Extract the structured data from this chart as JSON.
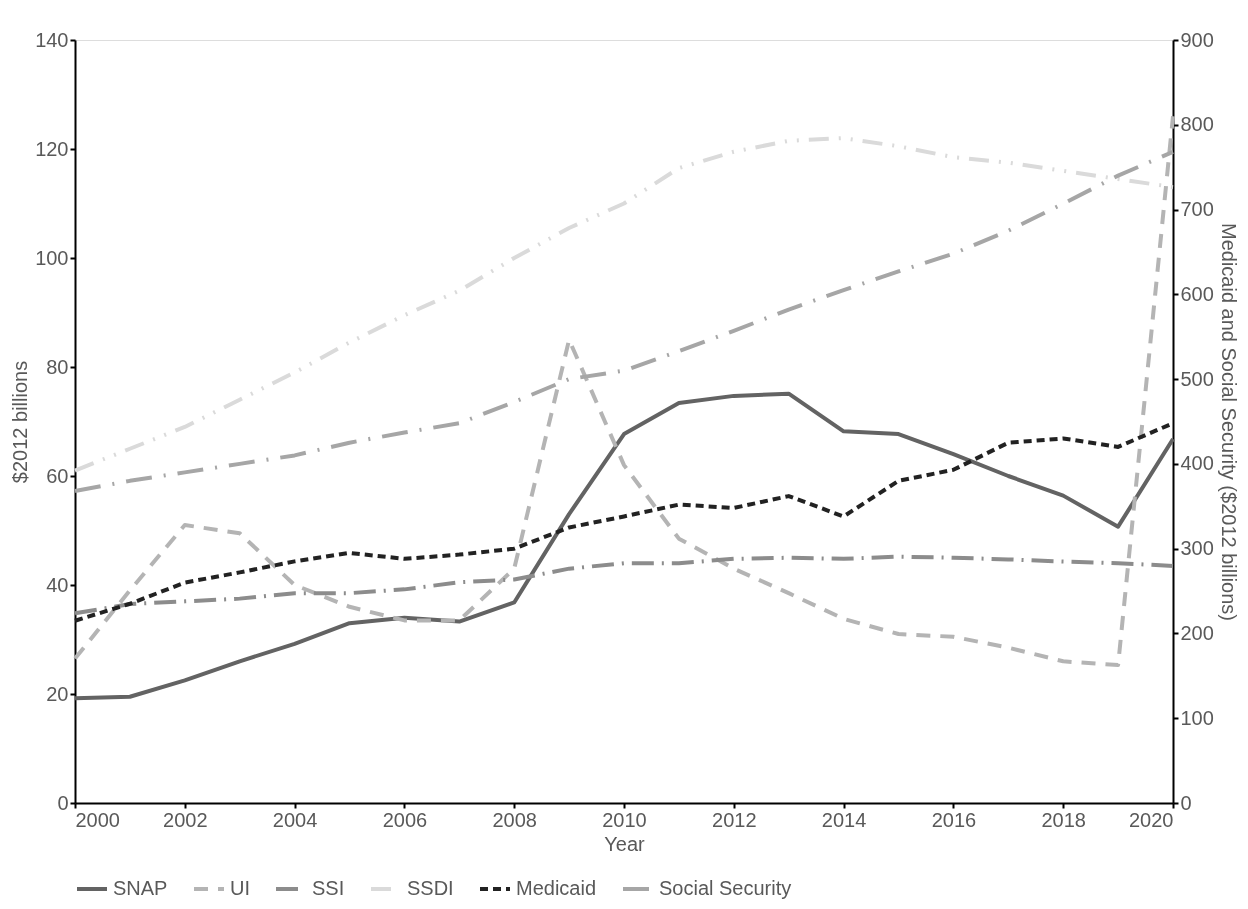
{
  "chart_data": {
    "type": "line",
    "xlabel": "Year",
    "ylabel": "$2012 billions",
    "y2label": "Medicaid and Social Security ($2012 billions)",
    "x": [
      2000,
      2001,
      2002,
      2003,
      2004,
      2005,
      2006,
      2007,
      2008,
      2009,
      2010,
      2011,
      2012,
      2013,
      2014,
      2015,
      2016,
      2017,
      2018,
      2019,
      2020
    ],
    "xlim": [
      2000,
      2020
    ],
    "xticks": [
      2000,
      2002,
      2004,
      2006,
      2008,
      2010,
      2012,
      2014,
      2016,
      2018,
      2020
    ],
    "ylim": [
      0,
      140
    ],
    "yticks": [
      0,
      20,
      40,
      60,
      80,
      100,
      120,
      140
    ],
    "y2lim": [
      0,
      900
    ],
    "y2ticks": [
      0,
      100,
      200,
      300,
      400,
      500,
      600,
      700,
      800,
      900
    ],
    "grid": false,
    "legend": "bottom",
    "marker": "none",
    "series": [
      {
        "name": "SNAP",
        "color": "#636363",
        "line_style": "solid",
        "values": [
          19.2,
          19.5,
          22.5,
          26,
          29.2,
          33,
          34,
          33.3,
          36.8,
          53,
          67.7,
          73.4,
          74.7,
          75.1,
          68.2,
          67.7,
          64,
          60,
          56.4,
          50.7,
          66.8
        ]
      },
      {
        "name": "UI",
        "color": "#b4b4b4",
        "line_style": "dashed",
        "values": [
          26.5,
          39,
          51,
          49.5,
          40,
          36,
          33.5,
          33.5,
          43,
          85,
          62,
          48.5,
          43,
          38.5,
          33.8,
          31,
          30.5,
          28.5,
          26,
          25.3,
          126
        ]
      },
      {
        "name": "SSI",
        "color": "#8c8c8c",
        "line_style": "dashed",
        "values": [
          34.8,
          36.5,
          37,
          37.5,
          38.5,
          38.5,
          39.2,
          40.5,
          41,
          43,
          44,
          44,
          44.8,
          45,
          44.8,
          45.2,
          45,
          44.7,
          44.3,
          44,
          43.5
        ]
      },
      {
        "name": "SSDI",
        "color": "#dadada",
        "line_style": "dashed",
        "values": [
          61,
          65,
          69,
          74,
          79,
          84.5,
          89.5,
          94,
          100,
          105.5,
          110,
          116.5,
          119.5,
          121.5,
          122,
          120.5,
          118.5,
          117.5,
          116,
          114.5,
          113
        ]
      },
      {
        "name": "Medicaid",
        "color": "#222222",
        "line_style": "dashed",
        "axis": "y2",
        "values": [
          215,
          235,
          260,
          272,
          285,
          295,
          288,
          293,
          300,
          325,
          338,
          352,
          348,
          362,
          338,
          380,
          393,
          425,
          430,
          420,
          448
        ]
      },
      {
        "name": "Social Security",
        "color": "#a6a6a6",
        "line_style": "dashed",
        "axis": "y2",
        "values": [
          368,
          380,
          390,
          400,
          410,
          425,
          437,
          448,
          473,
          500,
          510,
          533,
          557,
          582,
          605,
          627,
          648,
          675,
          707,
          740,
          768
        ]
      }
    ]
  }
}
